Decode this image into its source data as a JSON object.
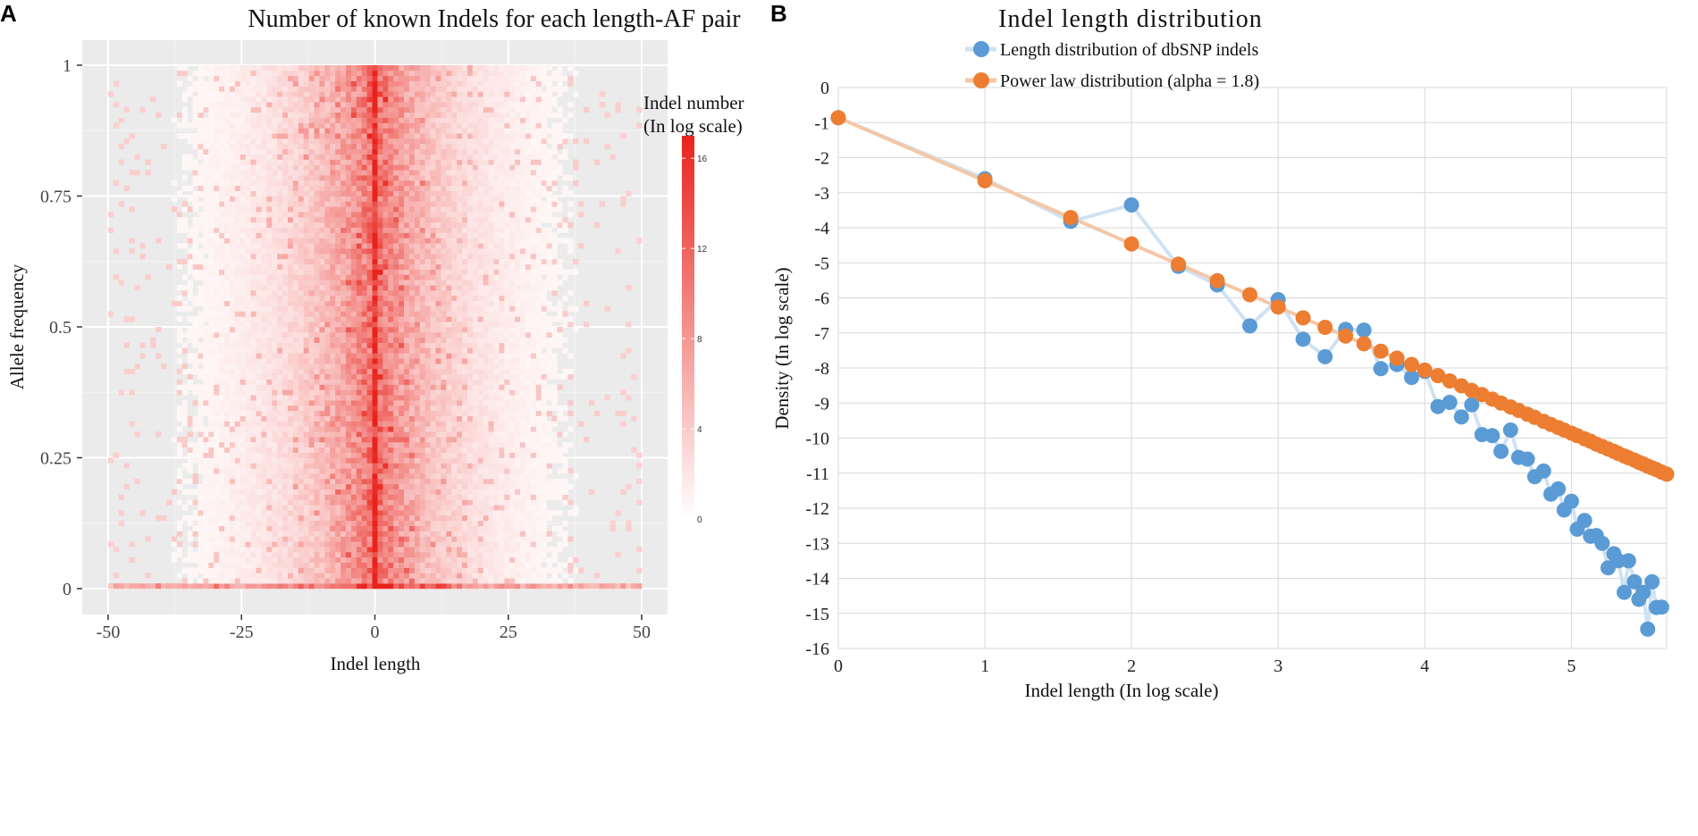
{
  "panels": {
    "a": {
      "letter": "A"
    },
    "b": {
      "letter": "B"
    }
  },
  "chart_data": [
    {
      "type": "heatmap",
      "title": "Number of known Indels for each length-AF pair",
      "xlabel": "Indel length",
      "ylabel": "Allele frequency",
      "xlim": [
        -50,
        50
      ],
      "ylim": [
        0,
        1
      ],
      "xticks": [
        -50,
        -25,
        0,
        25,
        50
      ],
      "xtick_labels": [
        "-50",
        "-25",
        "0",
        "25",
        "50"
      ],
      "yticks": [
        0,
        0.25,
        0.5,
        0.75,
        1
      ],
      "ytick_labels": [
        "0",
        "0.25",
        "0.5",
        "0.75",
        "1"
      ],
      "grid": true,
      "colorbar": {
        "title_line1": "Indel number",
        "title_line2": "(In log scale)",
        "range": [
          0,
          17
        ],
        "ticks": [
          0,
          4,
          8,
          12,
          16
        ],
        "tick_labels": [
          "0",
          "4",
          "8",
          "12",
          "16"
        ],
        "color_low": "#ffffff",
        "color_high": "#e8231c",
        "position": "right"
      },
      "approx_pattern": "Indel number peaks along Indel length = 0 (about 16–17) and decays with |length|; a dense band also lies along Allele frequency ≈ 0."
    },
    {
      "type": "scatter",
      "title": "Indel length distribution",
      "xlabel": "Indel length (In log scale)",
      "ylabel": "Density (In log scale)",
      "xlim": [
        0,
        5.65
      ],
      "ylim": [
        -16,
        0
      ],
      "xticks": [
        0,
        1,
        2,
        3,
        4,
        5
      ],
      "xtick_labels": [
        "0",
        "1",
        "2",
        "3",
        "4",
        "5"
      ],
      "yticks": [
        0,
        -1,
        -2,
        -3,
        -4,
        -5,
        -6,
        -7,
        -8,
        -9,
        -10,
        -11,
        -12,
        -13,
        -14,
        -15,
        -16
      ],
      "ytick_labels": [
        "0",
        "-1",
        "-2",
        "-3",
        "-4",
        "-5",
        "-6",
        "-7",
        "-8",
        "-9",
        "-10",
        "-11",
        "-12",
        "-13",
        "-14",
        "-15",
        "-16"
      ],
      "grid": true,
      "legend_position": "top",
      "series": [
        {
          "name": "Length distribution of dbSNP indels",
          "color": "#5b9bd5",
          "line_color": "#cfe2f3",
          "points": [
            [
              0,
              -0.86
            ],
            [
              1,
              -2.6
            ],
            [
              1.585,
              -3.82
            ],
            [
              2,
              -3.35
            ],
            [
              2.32,
              -5.1
            ],
            [
              2.585,
              -5.63
            ],
            [
              2.807,
              -6.8
            ],
            [
              3,
              -6.05
            ],
            [
              3.17,
              -7.18
            ],
            [
              3.32,
              -7.68
            ],
            [
              3.46,
              -6.9
            ],
            [
              3.585,
              -6.92
            ],
            [
              3.7,
              -8.02
            ],
            [
              3.81,
              -7.9
            ],
            [
              3.91,
              -8.27
            ],
            [
              4,
              -8.1
            ],
            [
              4.09,
              -9.1
            ],
            [
              4.17,
              -8.98
            ],
            [
              4.25,
              -9.4
            ],
            [
              4.32,
              -9.05
            ],
            [
              4.39,
              -9.9
            ],
            [
              4.46,
              -9.93
            ],
            [
              4.52,
              -10.38
            ],
            [
              4.585,
              -9.77
            ],
            [
              4.64,
              -10.55
            ],
            [
              4.7,
              -10.6
            ],
            [
              4.75,
              -11.1
            ],
            [
              4.81,
              -10.94
            ],
            [
              4.86,
              -11.6
            ],
            [
              4.91,
              -11.45
            ],
            [
              4.95,
              -12.05
            ],
            [
              5,
              -11.8
            ],
            [
              5.04,
              -12.6
            ],
            [
              5.09,
              -12.35
            ],
            [
              5.13,
              -12.8
            ],
            [
              5.17,
              -12.78
            ],
            [
              5.21,
              -13.0
            ],
            [
              5.25,
              -13.7
            ],
            [
              5.29,
              -13.3
            ],
            [
              5.32,
              -13.5
            ],
            [
              5.36,
              -14.4
            ],
            [
              5.39,
              -13.5
            ],
            [
              5.43,
              -14.1
            ],
            [
              5.46,
              -14.6
            ],
            [
              5.49,
              -14.4
            ],
            [
              5.52,
              -15.45
            ],
            [
              5.55,
              -14.1
            ],
            [
              5.58,
              -14.83
            ],
            [
              5.615,
              -14.82
            ]
          ]
        },
        {
          "name": "Power law distribution (alpha = 1.8)",
          "color": "#ed7d31",
          "line_color": "#f4c7a6",
          "points": [
            [
              0,
              -0.86
            ],
            [
              1,
              -2.66
            ],
            [
              1.585,
              -3.71
            ],
            [
              2,
              -4.46
            ],
            [
              2.32,
              -5.04
            ],
            [
              2.585,
              -5.51
            ],
            [
              2.807,
              -5.91
            ],
            [
              3,
              -6.26
            ],
            [
              3.17,
              -6.57
            ],
            [
              3.32,
              -6.84
            ],
            [
              3.46,
              -7.09
            ],
            [
              3.585,
              -7.31
            ],
            [
              3.7,
              -7.52
            ],
            [
              3.81,
              -7.72
            ],
            [
              3.91,
              -7.9
            ],
            [
              4,
              -8.06
            ],
            [
              4.09,
              -8.22
            ],
            [
              4.17,
              -8.37
            ],
            [
              4.25,
              -8.51
            ],
            [
              4.32,
              -8.64
            ],
            [
              4.39,
              -8.76
            ],
            [
              4.46,
              -8.89
            ],
            [
              4.52,
              -9.0
            ],
            [
              4.585,
              -9.11
            ],
            [
              4.64,
              -9.21
            ],
            [
              4.7,
              -9.32
            ],
            [
              4.75,
              -9.41
            ],
            [
              4.81,
              -9.52
            ],
            [
              4.86,
              -9.61
            ],
            [
              4.91,
              -9.7
            ],
            [
              4.95,
              -9.77
            ],
            [
              5,
              -9.86
            ],
            [
              5.04,
              -9.93
            ],
            [
              5.09,
              -10.02
            ],
            [
              5.13,
              -10.09
            ],
            [
              5.17,
              -10.17
            ],
            [
              5.21,
              -10.24
            ],
            [
              5.25,
              -10.31
            ],
            [
              5.29,
              -10.38
            ],
            [
              5.32,
              -10.44
            ],
            [
              5.36,
              -10.51
            ],
            [
              5.39,
              -10.56
            ],
            [
              5.43,
              -10.63
            ],
            [
              5.46,
              -10.69
            ],
            [
              5.49,
              -10.74
            ],
            [
              5.52,
              -10.8
            ],
            [
              5.55,
              -10.85
            ],
            [
              5.58,
              -10.9
            ],
            [
              5.615,
              -10.97
            ],
            [
              5.65,
              -11.03
            ]
          ]
        }
      ]
    }
  ]
}
